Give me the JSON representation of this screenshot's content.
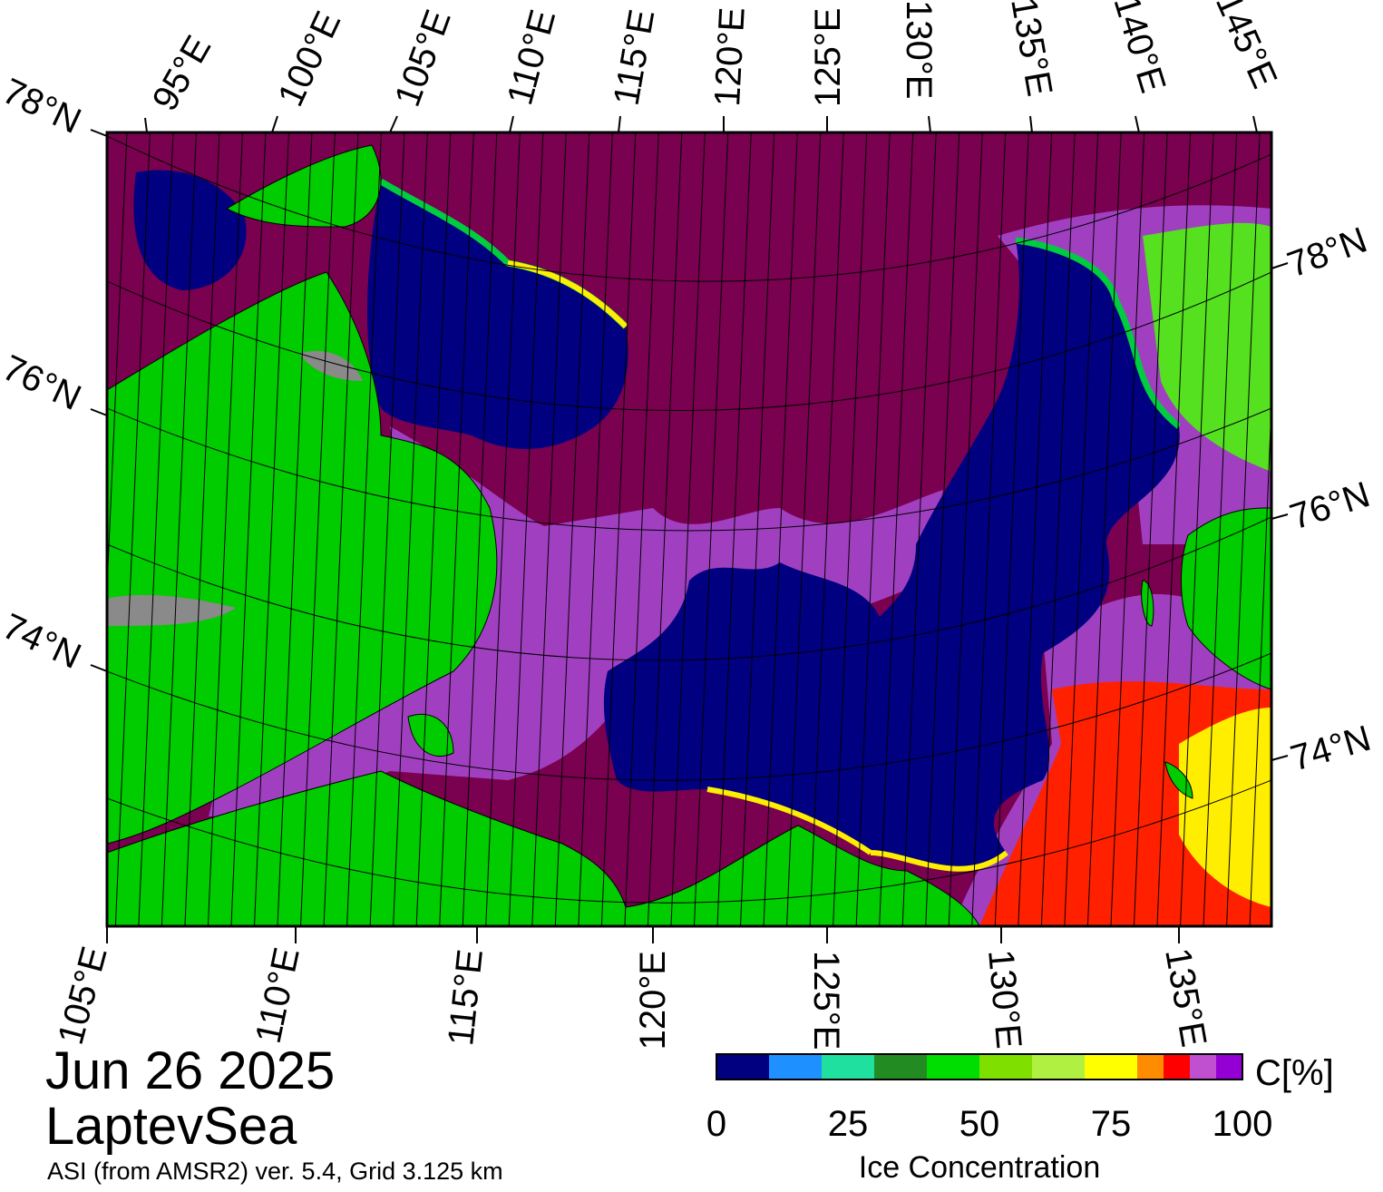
{
  "title": {
    "date": "Jun 26 2025",
    "region": "LaptevSea",
    "source": "ASI (from AMSR2) ver. 5.4,  Grid 3.125 km"
  },
  "map": {
    "top_lon_labels": [
      "95°E",
      "100°E",
      "105°E",
      "110°E",
      "115°E",
      "120°E",
      "125°E",
      "130°E",
      "135°E",
      "140°E",
      "145°E"
    ],
    "bottom_lon_labels": [
      "105°E",
      "110°E",
      "115°E",
      "120°E",
      "125°E",
      "130°E",
      "135°E"
    ],
    "left_lat_labels": [
      "78°N",
      "76°N",
      "74°N"
    ],
    "right_lat_labels": [
      "78°N",
      "76°N",
      "74°N"
    ],
    "colors": {
      "land": "#00cc00",
      "open_water": "#000080",
      "high_ice": "#7a0050",
      "coast_grey": "#8a8a8a"
    }
  },
  "colorbar": {
    "unit_label": "C[%]",
    "title": "Ice Concentration",
    "tick_labels": [
      "0",
      "25",
      "50",
      "75",
      "100"
    ],
    "range": [
      0,
      100
    ],
    "colors": [
      "#000080",
      "#1e90ff",
      "#20e0a0",
      "#228b22",
      "#00dd00",
      "#7fe000",
      "#b0f040",
      "#ffff00",
      "#ff8c00",
      "#ff0000",
      "#c050d0",
      "#9400d3"
    ]
  }
}
